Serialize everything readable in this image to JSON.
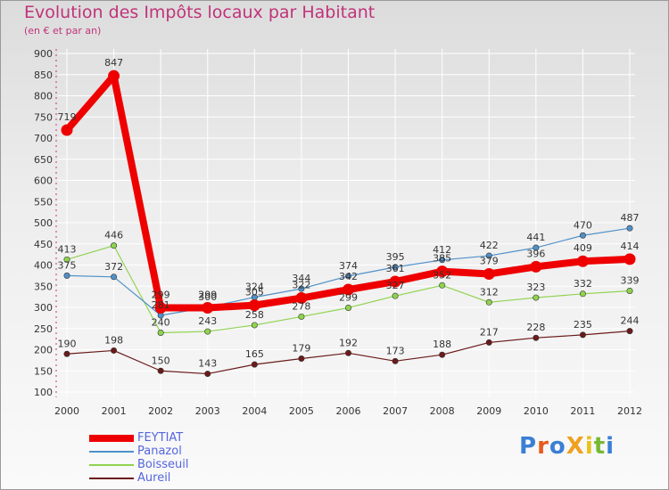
{
  "header": {
    "title": "Evolution des Impôts locaux par Habitant",
    "subtitle": "(en € et par an)"
  },
  "logo": {
    "text": "ProXiti",
    "colors": [
      "#3a7fd5",
      "#e85a1e",
      "#3a7fd5",
      "#f0a020",
      "#e8c21a",
      "#79b836",
      "#3a7fd5"
    ]
  },
  "chart_data": {
    "type": "line",
    "title": "Evolution des Impôts locaux par Habitant",
    "subtitle": "(en € et par an)",
    "xlabel": "",
    "ylabel": "",
    "x": [
      "2000",
      "2001",
      "2002",
      "2003",
      "2004",
      "2005",
      "2006",
      "2007",
      "2008",
      "2009",
      "2010",
      "2011",
      "2012"
    ],
    "ylim": [
      100,
      900
    ],
    "yticks": [
      100,
      150,
      200,
      250,
      300,
      350,
      400,
      450,
      500,
      550,
      600,
      650,
      700,
      750,
      800,
      850,
      900
    ],
    "grid": true,
    "legend_position": "bottom-left",
    "series": [
      {
        "name": "FEYTIAT",
        "color": "#ee0000",
        "values": [
          719,
          847,
          299,
          299,
          305,
          322,
          342,
          361,
          385,
          379,
          396,
          409,
          414
        ]
      },
      {
        "name": "Panazol",
        "color": "#4f91c9",
        "values": [
          375,
          372,
          281,
          300,
          324,
          344,
          374,
          395,
          412,
          422,
          441,
          470,
          487
        ]
      },
      {
        "name": "Boisseuil",
        "color": "#8fd34f",
        "values": [
          413,
          446,
          240,
          243,
          258,
          278,
          299,
          327,
          352,
          312,
          323,
          332,
          339
        ]
      },
      {
        "name": "Aureil",
        "color": "#6b1a1a",
        "values": [
          190,
          198,
          150,
          143,
          165,
          179,
          192,
          173,
          188,
          217,
          228,
          235,
          244
        ]
      }
    ]
  }
}
